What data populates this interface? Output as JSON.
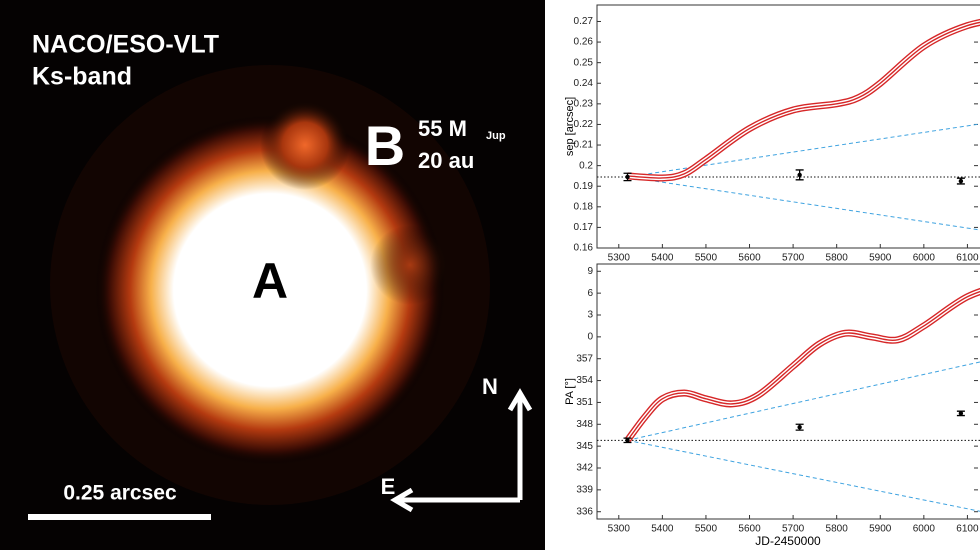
{
  "image": {
    "title": "NACO/ESO-VLT",
    "band": "Ks-band",
    "primary": "A",
    "companion": "B",
    "mass": "55 M",
    "mass_sub": "Jup",
    "distance": "20 au",
    "scale": "0.25 arcsec",
    "north": "N",
    "east": "E"
  },
  "chart_data": [
    {
      "type": "line",
      "ylabel": "sep [arcsec]",
      "x": [
        5320,
        5400,
        5450,
        5500,
        5600,
        5700,
        5800,
        5850,
        5900,
        6000,
        6100,
        6200
      ],
      "series": [
        {
          "color": "#d62728",
          "values": [
            0.195,
            0.194,
            0.196,
            0.203,
            0.218,
            0.227,
            0.23,
            0.233,
            0.24,
            0.258,
            0.268,
            0.272
          ]
        }
      ],
      "measurements": {
        "x": [
          5320,
          5715,
          6085
        ],
        "values": [
          0.1945,
          0.1955,
          0.1925
        ],
        "errors": [
          0.0018,
          0.0024,
          0.0014
        ]
      },
      "baseline": 0.1945,
      "cone": {
        "x": [
          5320,
          6200
        ],
        "upper": [
          0.1945,
          0.2225
        ],
        "lower": [
          0.1945,
          0.1665
        ]
      },
      "xlim": [
        5250,
        6200
      ],
      "ylim": [
        0.16,
        0.278
      ],
      "xticks": [
        5300,
        5400,
        5500,
        5600,
        5700,
        5800,
        5900,
        6000,
        6100
      ],
      "yticks": [
        0.16,
        0.17,
        0.18,
        0.19,
        0.2,
        0.21,
        0.22,
        0.23,
        0.24,
        0.25,
        0.26,
        0.27
      ]
    },
    {
      "type": "line",
      "ylabel": "PA [°]",
      "xlabel": "JD-2450000",
      "x": [
        5320,
        5360,
        5400,
        5450,
        5500,
        5560,
        5620,
        5700,
        5760,
        5820,
        5880,
        5940,
        6000,
        6100,
        6200
      ],
      "series": [
        {
          "color": "#d62728",
          "values": [
            345.8,
            349,
            351.5,
            352.3,
            351.5,
            350.8,
            352,
            356,
            359,
            360.5,
            360,
            359.6,
            361.5,
            365.5,
            367.5
          ]
        }
      ],
      "measurements": {
        "x": [
          5320,
          5715,
          6085
        ],
        "values": [
          345.8,
          347.6,
          349.5
        ],
        "errors": [
          0.3,
          0.4,
          0.3
        ]
      },
      "baseline": 345.8,
      "cone": {
        "x": [
          5320,
          6200
        ],
        "upper": [
          345.8,
          357.5
        ],
        "lower": [
          345.8,
          335.2
        ]
      },
      "xlim": [
        5250,
        6200
      ],
      "ylim": [
        335,
        370
      ],
      "xticks": [
        5300,
        5400,
        5500,
        5600,
        5700,
        5800,
        5900,
        6000,
        6100
      ],
      "yticks": [
        336,
        339,
        342,
        345,
        348,
        351,
        354,
        357,
        {
          "value": 360,
          "label": "0"
        },
        {
          "value": 363,
          "label": "3"
        },
        {
          "value": 366,
          "label": "6"
        },
        {
          "value": 369,
          "label": "9"
        }
      ]
    }
  ]
}
